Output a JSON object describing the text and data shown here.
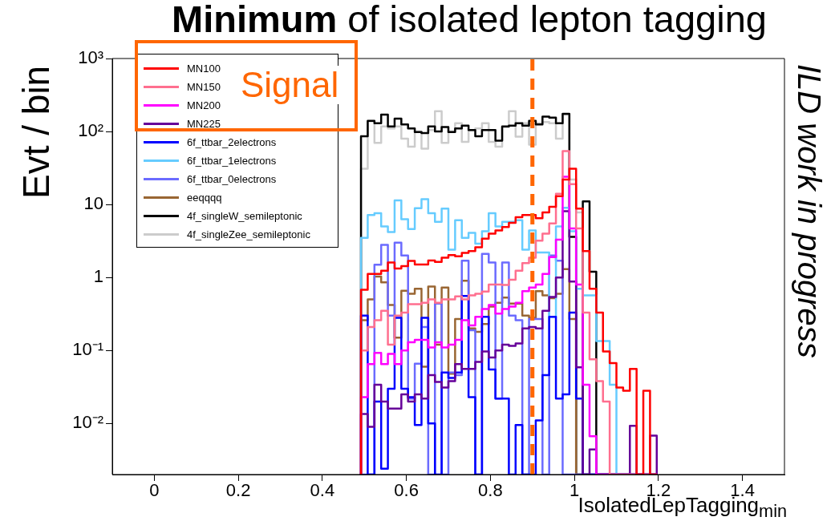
{
  "chart_data": {
    "type": "histogram",
    "title": "Minimum of isolated lepton tagging",
    "xlabel": "IsolatedLepTagging$_{min}$",
    "ylabel": "Evt / bin",
    "annotations": [
      "Signal",
      "ILD work in progress"
    ],
    "xlim": [
      -0.1,
      1.5
    ],
    "xticks": [
      0,
      0.2,
      0.4,
      0.6,
      0.8,
      1,
      1.2,
      1.4
    ],
    "ylim": [
      0.002,
      1000
    ],
    "yticks": [
      {
        "value": 0.01,
        "label": "10⁻²"
      },
      {
        "value": 0.1,
        "label": "10⁻¹"
      },
      {
        "value": 1,
        "label": "1"
      },
      {
        "value": 10,
        "label": "10"
      },
      {
        "value": 100,
        "label": "10²"
      },
      {
        "value": 1000,
        "label": "10³"
      }
    ],
    "log": true,
    "legend": "top left",
    "ref_lines": [
      {
        "axis": "x",
        "value": 0.9,
        "color": "#ff6600",
        "line_style": "dashed"
      }
    ],
    "bins": [
      0.492,
      0.508,
      0.524,
      0.54,
      0.556,
      0.572,
      0.588,
      0.604,
      0.62,
      0.636,
      0.652,
      0.668,
      0.684,
      0.7,
      0.716,
      0.732,
      0.748,
      0.764,
      0.78,
      0.796,
      0.812,
      0.828,
      0.844,
      0.86,
      0.876,
      0.892,
      0.908,
      0.924,
      0.94,
      0.956,
      0.972,
      0.988,
      1.004,
      1.02,
      1.036,
      1.052,
      1.068,
      1.084,
      1.1,
      1.116,
      1.132,
      1.148,
      1.164,
      1.18,
      1.196
    ],
    "series": [
      {
        "name": "MN100",
        "color": "#ff0000",
        "values": [
          0.68,
          1.12,
          1.12,
          1.24,
          1.6,
          1.33,
          1.43,
          1.69,
          1.51,
          1.51,
          1.71,
          1.64,
          1.87,
          2.03,
          1.95,
          2.17,
          2.3,
          2.6,
          3.4,
          4.0,
          4.4,
          4.9,
          5.6,
          6.7,
          7.2,
          7.2,
          6.5,
          7.8,
          9.3,
          13,
          22,
          31,
          8.8,
          2.3,
          0.7,
          0.33,
          0.097,
          0.067,
          0.031,
          0.028,
          0.056,
          null,
          0.028,
          null
        ]
      },
      {
        "name": "MN150",
        "color": "#ff6f8f",
        "values": [
          0.1,
          0.21,
          0.26,
          0.35,
          0.12,
          0.3,
          0.33,
          0.43,
          0.43,
          0.45,
          0.5,
          0.45,
          0.5,
          0.5,
          0.55,
          0.5,
          0.57,
          0.6,
          0.64,
          0.8,
          0.8,
          0.79,
          0.93,
          1.24,
          1.57,
          1.87,
          3.2,
          4.0,
          5.5,
          14,
          54,
          19,
          4.7,
          0.33,
          0.076,
          0.038,
          0.02,
          null,
          null,
          null,
          null,
          null,
          null,
          null
        ]
      },
      {
        "name": "MN200",
        "color": "#ff00ff",
        "values": [
          0.023,
          0.065,
          0.093,
          0.065,
          0.09,
          0.065,
          0.1,
          0.13,
          0.14,
          0.14,
          0.11,
          0.13,
          0.11,
          0.12,
          0.14,
          0.26,
          0.22,
          0.29,
          0.37,
          0.42,
          0.32,
          0.37,
          0.4,
          0.45,
          0.65,
          0.73,
          0.8,
          1.12,
          1.9,
          3.3,
          24,
          4.7,
          0.8,
          0.034,
          0.0067,
          null,
          null,
          null,
          null,
          null,
          null,
          null,
          null,
          null
        ]
      },
      {
        "name": "MN225",
        "color": "#660099",
        "values": [
          0.0135,
          0.009,
          0.034,
          0.02,
          0.016,
          0.016,
          0.025,
          0.02,
          0.025,
          0.022,
          0.046,
          0.037,
          0.031,
          0.038,
          0.065,
          0.056,
          0.056,
          0.07,
          0.097,
          0.08,
          0.1,
          0.12,
          0.116,
          0.125,
          0.2,
          0.21,
          0.2,
          0.35,
          0.54,
          1.0,
          8.1,
          0.88,
          0.059,
          null,
          0.0044,
          null,
          null,
          null,
          null,
          null,
          0.0093,
          null,
          null,
          0.0068
        ]
      },
      {
        "name": "6f_ttbar_2electrons",
        "color": "#0000ff",
        "values": [
          0.3,
          null,
          0.02,
          0.0024,
          0.03,
          0.28,
          0.03,
          0.023,
          0.0095,
          0.28,
          0.01,
          null,
          0.05,
          0.042,
          0.05,
          0.56,
          0.023,
          null,
          0.29,
          0.055,
          0.022,
          0.022,
          null,
          0.0095,
          null,
          null,
          0.011,
          0.046,
          0.29,
          0.022,
          0.025,
          0.33,
          0.022,
          null,
          null,
          null,
          null,
          null,
          null,
          null,
          null,
          null,
          null,
          null
        ]
      },
      {
        "name": "6f_ttbar_1electrons",
        "color": "#66ccff",
        "values": [
          3.5,
          7.2,
          7.6,
          5.0,
          4.2,
          11.4,
          6.3,
          4.6,
          8.9,
          11.8,
          7.6,
          5.8,
          8.8,
          2.4,
          6.1,
          3.5,
          4.1,
          2.9,
          4.3,
          7.6,
          5.0,
          5.8,
          5.8,
          6.1,
          2.4,
          4.4,
          2.2,
          2.2,
          0.29,
          5,
          9,
          4.3,
          0.7,
          0.57,
          0.57,
          0.135,
          0.135,
          0.034,
          null,
          null,
          null,
          null,
          null,
          null
        ]
      },
      {
        "name": "6f_ttbar_0electrons",
        "color": "#6b6bff",
        "values": [
          null,
          null,
          1.5,
          2.8,
          0.3,
          3.0,
          2.0,
          0.022,
          0.066,
          0.21,
          null,
          0.44,
          null,
          0.05,
          0.046,
          1.7,
          0.19,
          null,
          2.1,
          1.6,
          0.022,
          1.6,
          0.3,
          0.26,
          null,
          0.27,
          0.27,
          null,
          2.0,
          1.7,
          null,
          null,
          null,
          null,
          null,
          null,
          null,
          null,
          null,
          null,
          null,
          null,
          null,
          null
        ]
      },
      {
        "name": "eeqqqq",
        "color": "#996633",
        "values": [
          0.26,
          0.5,
          1.03,
          0.86,
          0.42,
          0.15,
          0.66,
          0.6,
          0.7,
          0.06,
          0.75,
          0.12,
          0.73,
          0.048,
          0.27,
          0.9,
          0.2,
          0.18,
          0.23,
          0.4,
          0.45,
          0.53,
          0.44,
          0.44,
          0.3,
          0.28,
          0.65,
          0.57,
          0.52,
          0.6,
          1.3,
          0.27,
          null,
          null,
          null,
          null,
          null,
          null,
          null,
          null,
          null,
          null,
          null,
          null
        ]
      },
      {
        "name": "4f_singleW_semileptonic",
        "color": "#000000",
        "values": [
          86,
          140,
          130,
          170,
          117,
          150,
          125,
          110,
          98,
          95,
          117,
          100,
          115,
          98,
          110,
          120,
          105,
          86,
          105,
          105,
          75,
          117,
          120,
          130,
          120,
          140,
          125,
          160,
          155,
          130,
          175,
          3.6,
          null,
          11,
          1.2,
          null,
          null,
          null,
          null,
          null,
          null,
          null,
          null,
          null
        ]
      },
      {
        "name": "4f_singleZee_semileptonic",
        "color": "#cccccc",
        "values": [
          31,
          138,
          70,
          117,
          110,
          117,
          80,
          62,
          100,
          58,
          105,
          190,
          70,
          100,
          130,
          72,
          105,
          110,
          130,
          72,
          62,
          115,
          190,
          85,
          130,
          66,
          130,
          135,
          130,
          80,
          170,
          22,
          7.8,
          null,
          null,
          null,
          null,
          null,
          null,
          null,
          null,
          null,
          null,
          null
        ]
      }
    ]
  }
}
